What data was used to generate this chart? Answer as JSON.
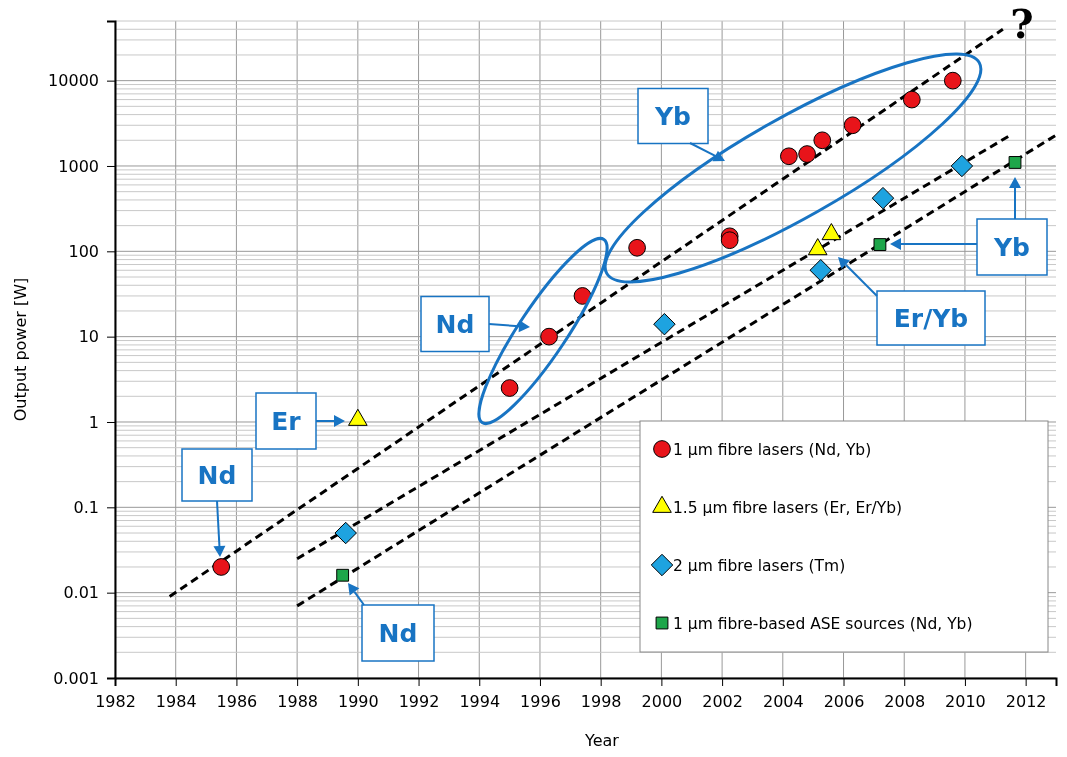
{
  "chart_data": {
    "type": "scatter",
    "xlabel": "Year",
    "ylabel": "Output power [W]",
    "log": "y",
    "grid": true,
    "legend": "bottom right",
    "xlim": [
      1982,
      2013
    ],
    "xticks": [
      1982,
      1984,
      1986,
      1988,
      1990,
      1992,
      1994,
      1996,
      1998,
      2000,
      2002,
      2004,
      2006,
      2008,
      2010,
      2012
    ],
    "ylim": [
      0.001,
      50000
    ],
    "yticks": [
      0.001,
      0.01,
      0.1,
      1,
      10,
      100,
      1000,
      10000
    ],
    "series": [
      {
        "name": "1 µm fibre lasers (Nd, Yb)",
        "marker": "circle",
        "color": "#e8141a",
        "x": [
          1985.5,
          1995.0,
          1996.3,
          1997.4,
          1999.2,
          2002.25,
          2002.25,
          2004.2,
          2004.8,
          2005.3,
          2006.3,
          2008.25,
          2009.6
        ],
        "values": [
          0.02,
          2.5,
          10,
          30,
          110,
          150,
          135,
          1300,
          1380,
          2000,
          3000,
          6000,
          10000
        ]
      },
      {
        "name": "1.5 µm fibre lasers (Er, Er/Yb)",
        "marker": "triangle",
        "color": "#ffff00",
        "x": [
          1990.0,
          2005.15,
          2005.6
        ],
        "values": [
          1,
          100,
          150
        ]
      },
      {
        "name": "2 µm fibre lasers (Tm)",
        "marker": "diamond",
        "color": "#1ea3e0",
        "x": [
          1989.6,
          2000.1,
          2005.25,
          2007.3,
          2009.9
        ],
        "values": [
          0.05,
          14,
          60,
          420,
          1000
        ]
      },
      {
        "name": "1  µm fibre-based ASE sources (Nd, Yb)",
        "marker": "square",
        "color": "#1ea64a",
        "x": [
          1989.5,
          2007.2,
          2011.65
        ],
        "values": [
          0.016,
          120,
          1100
        ]
      },
      {
        "type": "line",
        "line_style": "dashed",
        "marker": "none",
        "color": "#000000",
        "x": [
          1983.8,
          2011.25
        ],
        "values": [
          0.009,
          40000
        ]
      },
      {
        "type": "line",
        "line_style": "dashed",
        "marker": "none",
        "color": "#000000",
        "x": [
          1988,
          2011.5
        ],
        "values": [
          0.025,
          2300
        ]
      },
      {
        "type": "line",
        "line_style": "dashed",
        "marker": "none",
        "color": "#000000",
        "x": [
          1988,
          2013
        ],
        "values": [
          0.007,
          2300
        ]
      }
    ],
    "annotations": [
      "Nd",
      "Er",
      "Nd",
      "Yb",
      "Nd",
      "Yb",
      "Er/Yb",
      "?"
    ]
  }
}
